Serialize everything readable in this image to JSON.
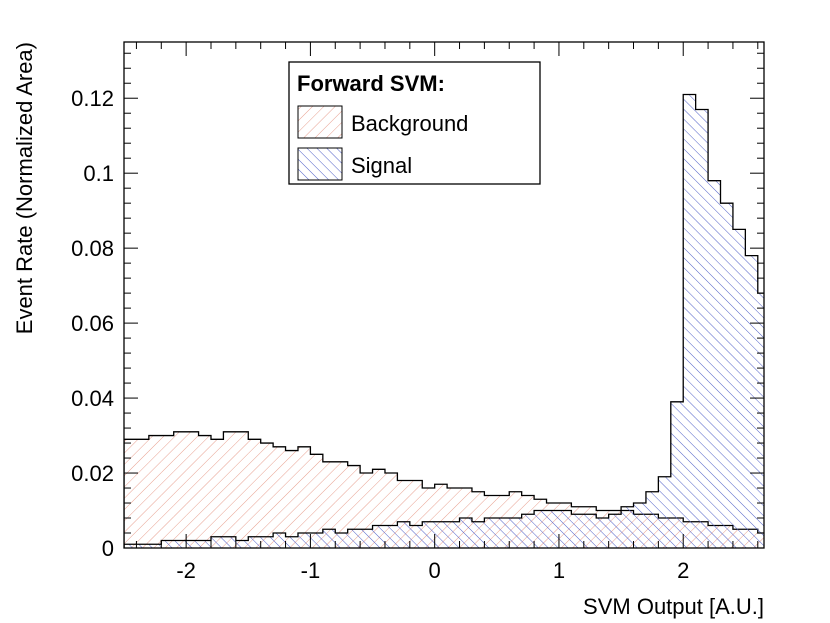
{
  "chart_data": {
    "type": "histogram",
    "xlabel": "SVM Output [A.U.]",
    "ylabel": "Event Rate (Normalized Area)",
    "xlim": [
      -2.5,
      2.65
    ],
    "ylim": [
      0,
      0.135
    ],
    "x_ticks": [
      {
        "value": -2,
        "label": "-2"
      },
      {
        "value": -1,
        "label": "-1"
      },
      {
        "value": 0,
        "label": "0"
      },
      {
        "value": 1,
        "label": "1"
      },
      {
        "value": 2,
        "label": "2"
      }
    ],
    "y_ticks": [
      {
        "value": 0,
        "label": "0"
      },
      {
        "value": 0.02,
        "label": "0.02"
      },
      {
        "value": 0.04,
        "label": "0.04"
      },
      {
        "value": 0.06,
        "label": "0.06"
      },
      {
        "value": 0.08,
        "label": "0.08"
      },
      {
        "value": 0.1,
        "label": "0.1"
      },
      {
        "value": 0.12,
        "label": "0.12"
      }
    ],
    "bin_start": -2.5,
    "bin_width": 0.1,
    "legend": {
      "title": "Forward SVM:",
      "position": "top-center"
    },
    "series": [
      {
        "name": "Background",
        "color": "#e8a090",
        "values": [
          0.029,
          0.029,
          0.03,
          0.03,
          0.031,
          0.031,
          0.03,
          0.029,
          0.031,
          0.031,
          0.029,
          0.028,
          0.027,
          0.026,
          0.027,
          0.025,
          0.023,
          0.023,
          0.022,
          0.02,
          0.021,
          0.02,
          0.018,
          0.018,
          0.016,
          0.017,
          0.016,
          0.016,
          0.015,
          0.014,
          0.014,
          0.015,
          0.014,
          0.013,
          0.012,
          0.012,
          0.011,
          0.011,
          0.01,
          0.01,
          0.01,
          0.009,
          0.009,
          0.008,
          0.008,
          0.007,
          0.007,
          0.006,
          0.006,
          0.005,
          0.005,
          0.004,
          0.004,
          0.003,
          0.003,
          0.002,
          0.002,
          0.002,
          0.001,
          0.001,
          0.001,
          0.001,
          0.0005,
          0.0005,
          0.0003,
          0.0002,
          0.0001,
          0.0001,
          0.0001,
          0.0001,
          0.0001,
          0.0001
        ]
      },
      {
        "name": "Signal",
        "color": "#6070d0",
        "values": [
          0.001,
          0.001,
          0.001,
          0.002,
          0.002,
          0.002,
          0.002,
          0.003,
          0.003,
          0.002,
          0.003,
          0.003,
          0.004,
          0.003,
          0.004,
          0.004,
          0.005,
          0.004,
          0.005,
          0.005,
          0.006,
          0.006,
          0.007,
          0.006,
          0.007,
          0.007,
          0.007,
          0.008,
          0.007,
          0.008,
          0.008,
          0.008,
          0.009,
          0.01,
          0.01,
          0.01,
          0.009,
          0.009,
          0.008,
          0.009,
          0.011,
          0.012,
          0.015,
          0.019,
          0.039,
          0.121,
          0.117,
          0.098,
          0.092,
          0.085,
          0.078,
          0.068,
          0.053,
          0.048,
          0.038,
          0.03,
          0.02,
          0.01,
          0.004,
          0.002,
          0.001,
          0.0005,
          0.0003,
          0.0002,
          0.0001,
          0.0001,
          0.0001,
          0.0001,
          0.0001,
          0.0001,
          0.0001,
          0.0001
        ]
      }
    ]
  }
}
